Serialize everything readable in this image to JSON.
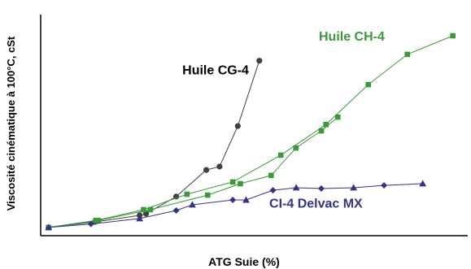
{
  "chart_data": {
    "type": "line",
    "title": "",
    "xlabel": "ATG Suie (%)",
    "ylabel": "Viscosité cinématique à 100°C, cSt",
    "grid": false,
    "legend": "inline labels near series",
    "xlim": [
      0,
      10
    ],
    "ylim": [
      0,
      10
    ],
    "series": [
      {
        "name": "Huile CG-4",
        "color": "#404040",
        "marker": "circle",
        "label_pos": [
          4.7,
          7.4
        ],
        "x": [
          0.04,
          1.33,
          2.58,
          2.76,
          3.6,
          4.44,
          4.81,
          5.32,
          5.92
        ],
        "y": [
          0.16,
          0.42,
          0.73,
          0.81,
          1.62,
          2.88,
          3.04,
          4.96,
          8.05
        ]
      },
      {
        "name": "Huile CH-4",
        "color": "#3a9a3a",
        "marker": "square",
        "label_pos": [
          8.5,
          9.0
        ],
        "x": [
          0.04,
          1.36,
          2.69,
          3.9,
          5.18,
          6.52,
          7.78,
          8.96,
          10.05,
          11.32
        ],
        "y": [
          0.16,
          0.49,
          1.0,
          1.73,
          2.31,
          3.58,
          5.03,
          6.92,
          8.35,
          9.23
        ],
        "x2": [
          0.04,
          1.43,
          2.88,
          4.48,
          5.39,
          6.25,
          6.94,
          7.65,
          8.11
        ],
        "y2": [
          0.16,
          0.49,
          1.0,
          1.69,
          2.23,
          2.62,
          3.92,
          4.73,
          5.38
        ]
      },
      {
        "name": "CI-4 Delvac MX",
        "color": "#33338a",
        "marker": "triangle",
        "label_pos": [
          7.5,
          1.1
        ],
        "x": [
          0.04,
          1.22,
          2.58,
          3.6,
          4.05,
          5.18,
          5.55,
          6.3,
          6.95,
          7.65,
          8.55,
          9.4,
          10.48
        ],
        "y": [
          0.16,
          0.32,
          0.58,
          0.96,
          1.23,
          1.46,
          1.46,
          1.92,
          2.04,
          2.0,
          2.04,
          2.15,
          2.23
        ]
      }
    ]
  }
}
